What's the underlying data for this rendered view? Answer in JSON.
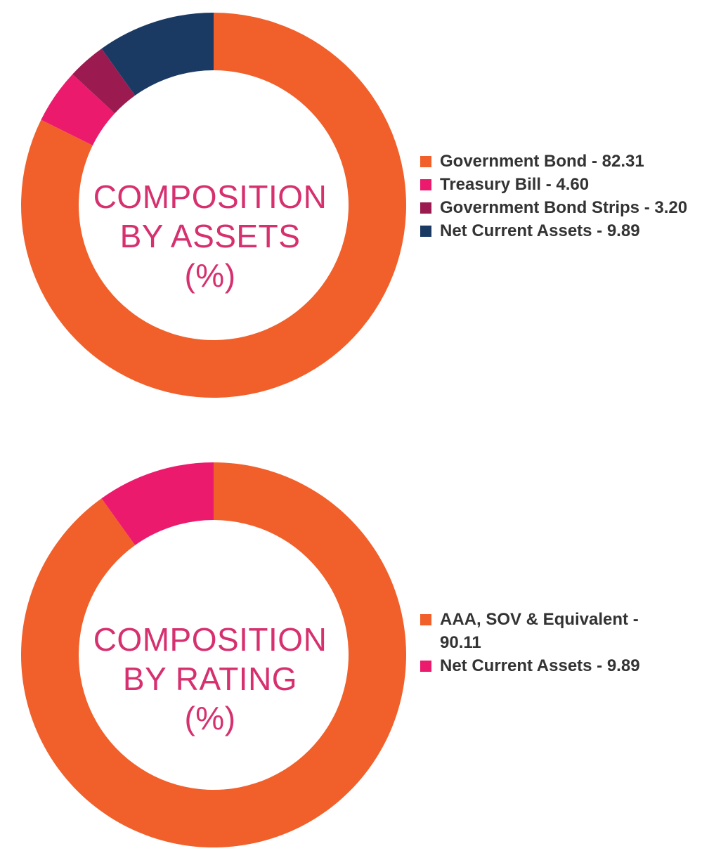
{
  "chart_data": [
    {
      "type": "pie",
      "donut": true,
      "title_lines": [
        "COMPOSITION",
        "BY ASSETS",
        "(%)"
      ],
      "categories": [
        "Government Bond",
        "Treasury Bill",
        "Government Bond Strips",
        "Net Current Assets"
      ],
      "values": [
        82.31,
        4.6,
        3.2,
        9.89
      ],
      "legend_labels": [
        "Government Bond - 82.31",
        "Treasury Bill - 4.60",
        "Government Bond Strips - 3.20",
        "Net Current Assets - 9.89"
      ],
      "colors": [
        "#f15f2a",
        "#ec1a6d",
        "#9b1b50",
        "#1b3a63"
      ],
      "legend_position": "right"
    },
    {
      "type": "pie",
      "donut": true,
      "title_lines": [
        "COMPOSITION",
        "BY RATING",
        "(%)"
      ],
      "categories": [
        "AAA, SOV & Equivalent",
        "Net Current Assets"
      ],
      "values": [
        90.11,
        9.89
      ],
      "legend_labels": [
        "AAA, SOV & Equivalent - 90.11",
        "Net Current Assets - 9.89"
      ],
      "colors": [
        "#f15f2a",
        "#ec1a6d"
      ],
      "legend_position": "right"
    }
  ]
}
